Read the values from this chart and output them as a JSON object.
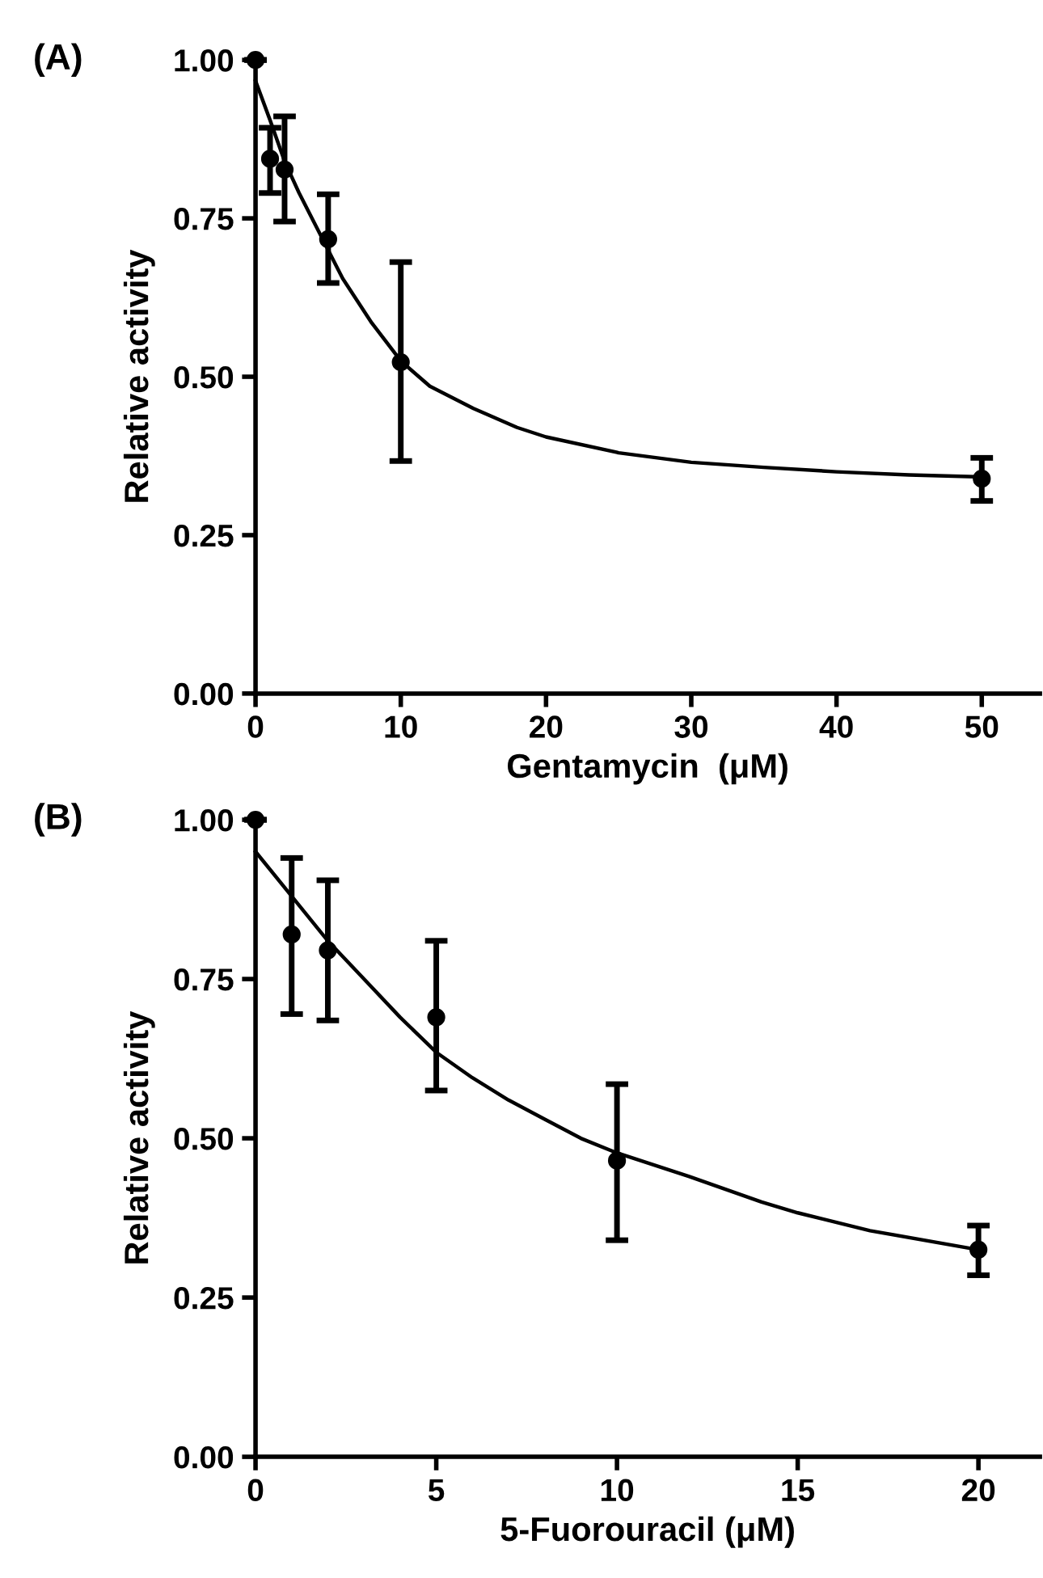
{
  "chart_data": [
    {
      "type": "scatter",
      "xlabel": "Gentamycin  (μM)",
      "ylabel": "Relative activity",
      "annotations": [
        "(A)"
      ],
      "xlim": [
        0,
        54
      ],
      "xticks": [
        0,
        10,
        20,
        30,
        40,
        50
      ],
      "ylim": [
        0,
        1.0
      ],
      "yticks": [
        {
          "value": 0,
          "label": "0.00"
        },
        {
          "value": 0.25,
          "label": "0.25"
        },
        {
          "value": 0.5,
          "label": "0.50"
        },
        {
          "value": 0.75,
          "label": "0.75"
        },
        {
          "value": 1.0,
          "label": "1.00"
        }
      ],
      "grid": false,
      "legend": false,
      "series": [
        {
          "type": "scatter",
          "color": "#000000",
          "marker": "circle",
          "x": [
            0,
            1,
            2,
            5,
            10,
            50
          ],
          "values": [
            1.0,
            0.844,
            0.827,
            0.717,
            0.523,
            0.339
          ],
          "errors": [
            null,
            [
              0.79,
              0.893
            ],
            [
              0.745,
              0.911
            ],
            [
              0.648,
              0.788
            ],
            [
              0.367,
              0.681
            ],
            [
              0.304,
              0.372
            ]
          ]
        },
        {
          "type": "line",
          "color": "#000000",
          "line_style": "solid",
          "x": [
            0,
            1,
            2,
            3,
            4,
            5,
            6,
            7,
            8,
            10,
            12,
            15,
            18,
            20,
            25,
            30,
            35,
            40,
            45,
            50
          ],
          "values": [
            0.967,
            0.905,
            0.84,
            0.79,
            0.745,
            0.7,
            0.655,
            0.62,
            0.585,
            0.525,
            0.485,
            0.45,
            0.42,
            0.405,
            0.38,
            0.365,
            0.357,
            0.35,
            0.345,
            0.342
          ]
        }
      ]
    },
    {
      "type": "scatter",
      "xlabel": "5-Fuorouracil (μM)",
      "ylabel": "Relative activity",
      "annotations": [
        "(B)"
      ],
      "xlim": [
        0,
        21.7
      ],
      "xticks": [
        0,
        5,
        10,
        15,
        20
      ],
      "ylim": [
        0,
        1.0
      ],
      "yticks": [
        {
          "value": 0,
          "label": "0.00"
        },
        {
          "value": 0.25,
          "label": "0.25"
        },
        {
          "value": 0.5,
          "label": "0.50"
        },
        {
          "value": 0.75,
          "label": "0.75"
        },
        {
          "value": 1.0,
          "label": "1.00"
        }
      ],
      "grid": false,
      "legend": false,
      "series": [
        {
          "type": "scatter",
          "color": "#000000",
          "marker": "circle",
          "x": [
            0,
            1,
            2,
            5,
            10,
            20
          ],
          "values": [
            1.0,
            0.82,
            0.795,
            0.69,
            0.465,
            0.325
          ],
          "errors": [
            null,
            [
              0.695,
              0.94
            ],
            [
              0.685,
              0.905
            ],
            [
              0.575,
              0.81
            ],
            [
              0.34,
              0.585
            ],
            [
              0.285,
              0.363
            ]
          ]
        },
        {
          "type": "line",
          "color": "#000000",
          "line_style": "solid",
          "x": [
            0,
            1,
            2,
            3,
            4,
            5,
            6,
            7,
            8,
            9,
            10,
            12,
            14,
            15,
            17,
            20
          ],
          "values": [
            0.95,
            0.88,
            0.81,
            0.75,
            0.69,
            0.635,
            0.595,
            0.56,
            0.53,
            0.5,
            0.477,
            0.44,
            0.4,
            0.383,
            0.355,
            0.325
          ]
        }
      ]
    }
  ]
}
